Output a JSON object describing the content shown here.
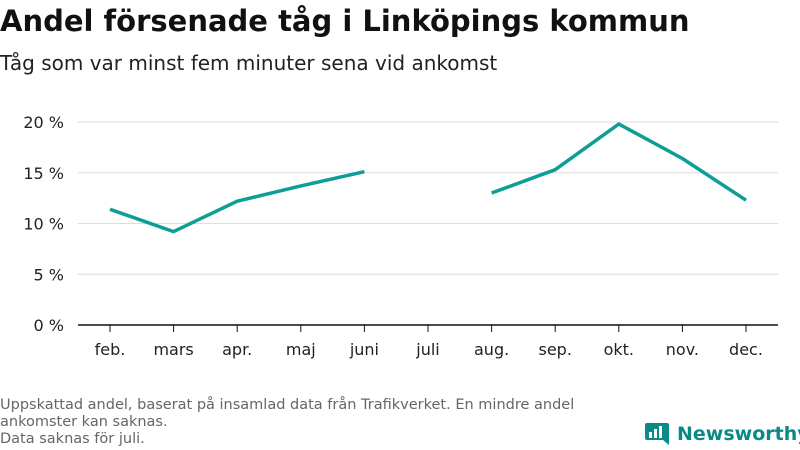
{
  "title": "Andel försenade tåg i Linköpings kommun",
  "subtitle": "Tåg som var minst fem minuter sena vid ankomst",
  "notes": [
    "Uppskattad andel, baserat på insamlad data från Trafikverket. En mindre andel ankomster kan saknas.",
    "Data saknas för juli."
  ],
  "logo_text": "Newsworthy",
  "colors": {
    "line": "#0d9e95",
    "grid": "#dddddd",
    "axis": "#111111",
    "logo": "#0a8a84"
  },
  "chart_data": {
    "type": "line",
    "title": "Andel försenade tåg i Linköpings kommun",
    "subtitle": "Tåg som var minst fem minuter sena vid ankomst",
    "xlabel": "",
    "ylabel": "",
    "categories": [
      "feb.",
      "mars",
      "apr.",
      "maj",
      "juni",
      "juli",
      "aug.",
      "sep.",
      "okt.",
      "nov.",
      "dec."
    ],
    "series": [
      {
        "values": [
          11.4,
          9.2,
          12.2,
          13.7,
          15.1,
          null,
          13.0,
          15.3,
          19.8,
          16.4,
          12.3
        ]
      }
    ],
    "ylim": [
      0,
      20
    ],
    "yticks": [
      0,
      5,
      10,
      15,
      20
    ],
    "ytick_labels": [
      "0 %",
      "5 %",
      "10 %",
      "15 %",
      "20 %"
    ],
    "grid": true,
    "legend": false
  }
}
